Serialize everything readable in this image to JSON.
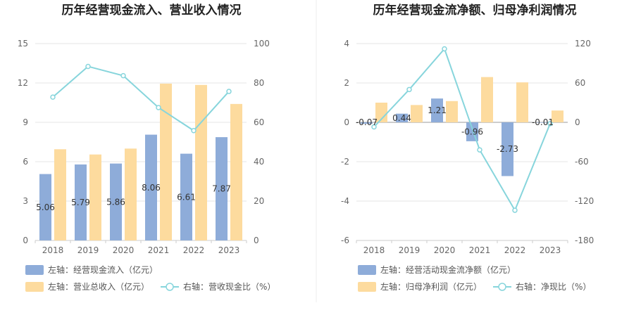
{
  "chart_data": [
    {
      "type": "bar",
      "title": "历年经营现金流入、营业收入情况",
      "categories": [
        "2018",
        "2019",
        "2020",
        "2021",
        "2022",
        "2023"
      ],
      "ylim_left": [
        0,
        15
      ],
      "yticks_left": [
        "0",
        "3",
        "6",
        "9",
        "12",
        "15"
      ],
      "ylim_right": [
        0,
        100
      ],
      "yticks_right": [
        "0",
        "20",
        "40",
        "60",
        "80",
        "100"
      ],
      "series": [
        {
          "name": "左轴：经营现金流入（亿元）",
          "axis": "left",
          "kind": "bar",
          "color": "#8eacd9",
          "values": [
            5.06,
            5.79,
            5.86,
            8.06,
            6.61,
            7.87
          ],
          "labels": [
            "5.06",
            "5.79",
            "5.86",
            "8.06",
            "6.61",
            "7.87"
          ]
        },
        {
          "name": "左轴：营业总收入（亿元）",
          "axis": "left",
          "kind": "bar",
          "color": "#fddb9e",
          "values": [
            6.95,
            6.55,
            7.0,
            11.95,
            11.85,
            10.4
          ]
        },
        {
          "name": "右轴：营收现金比（%）",
          "axis": "right",
          "kind": "line",
          "color": "#87d5dc",
          "values": [
            72.8,
            88.4,
            83.7,
            67.5,
            55.8,
            75.7
          ]
        }
      ]
    },
    {
      "type": "bar",
      "title": "历年经营现金流净额、归母净利润情况",
      "categories": [
        "2018",
        "2019",
        "2020",
        "2021",
        "2022",
        "2023"
      ],
      "ylim_left": [
        -6,
        4
      ],
      "yticks_left": [
        "-6",
        "-4",
        "-2",
        "0",
        "2",
        "4"
      ],
      "ylim_right": [
        -180,
        120
      ],
      "yticks_right": [
        "-180",
        "-120",
        "-60",
        "0",
        "60",
        "120"
      ],
      "series": [
        {
          "name": "左轴：经营活动现金流净额（亿元）",
          "axis": "left",
          "kind": "bar",
          "color": "#8eacd9",
          "values": [
            -0.07,
            0.44,
            1.21,
            -0.96,
            -2.73,
            -0.01
          ],
          "labels": [
            "-0.07",
            "0.44",
            "1.21",
            "-0.96",
            "-2.73",
            "-0.01"
          ]
        },
        {
          "name": "左轴：归母净利润（亿元）",
          "axis": "left",
          "kind": "bar",
          "color": "#fddb9e",
          "values": [
            1.0,
            0.88,
            1.08,
            2.3,
            2.03,
            0.6
          ]
        },
        {
          "name": "右轴：净现比（%）",
          "axis": "right",
          "kind": "line",
          "color": "#87d5dc",
          "values": [
            -7,
            50,
            112,
            -42,
            -134,
            -2
          ]
        }
      ]
    }
  ]
}
